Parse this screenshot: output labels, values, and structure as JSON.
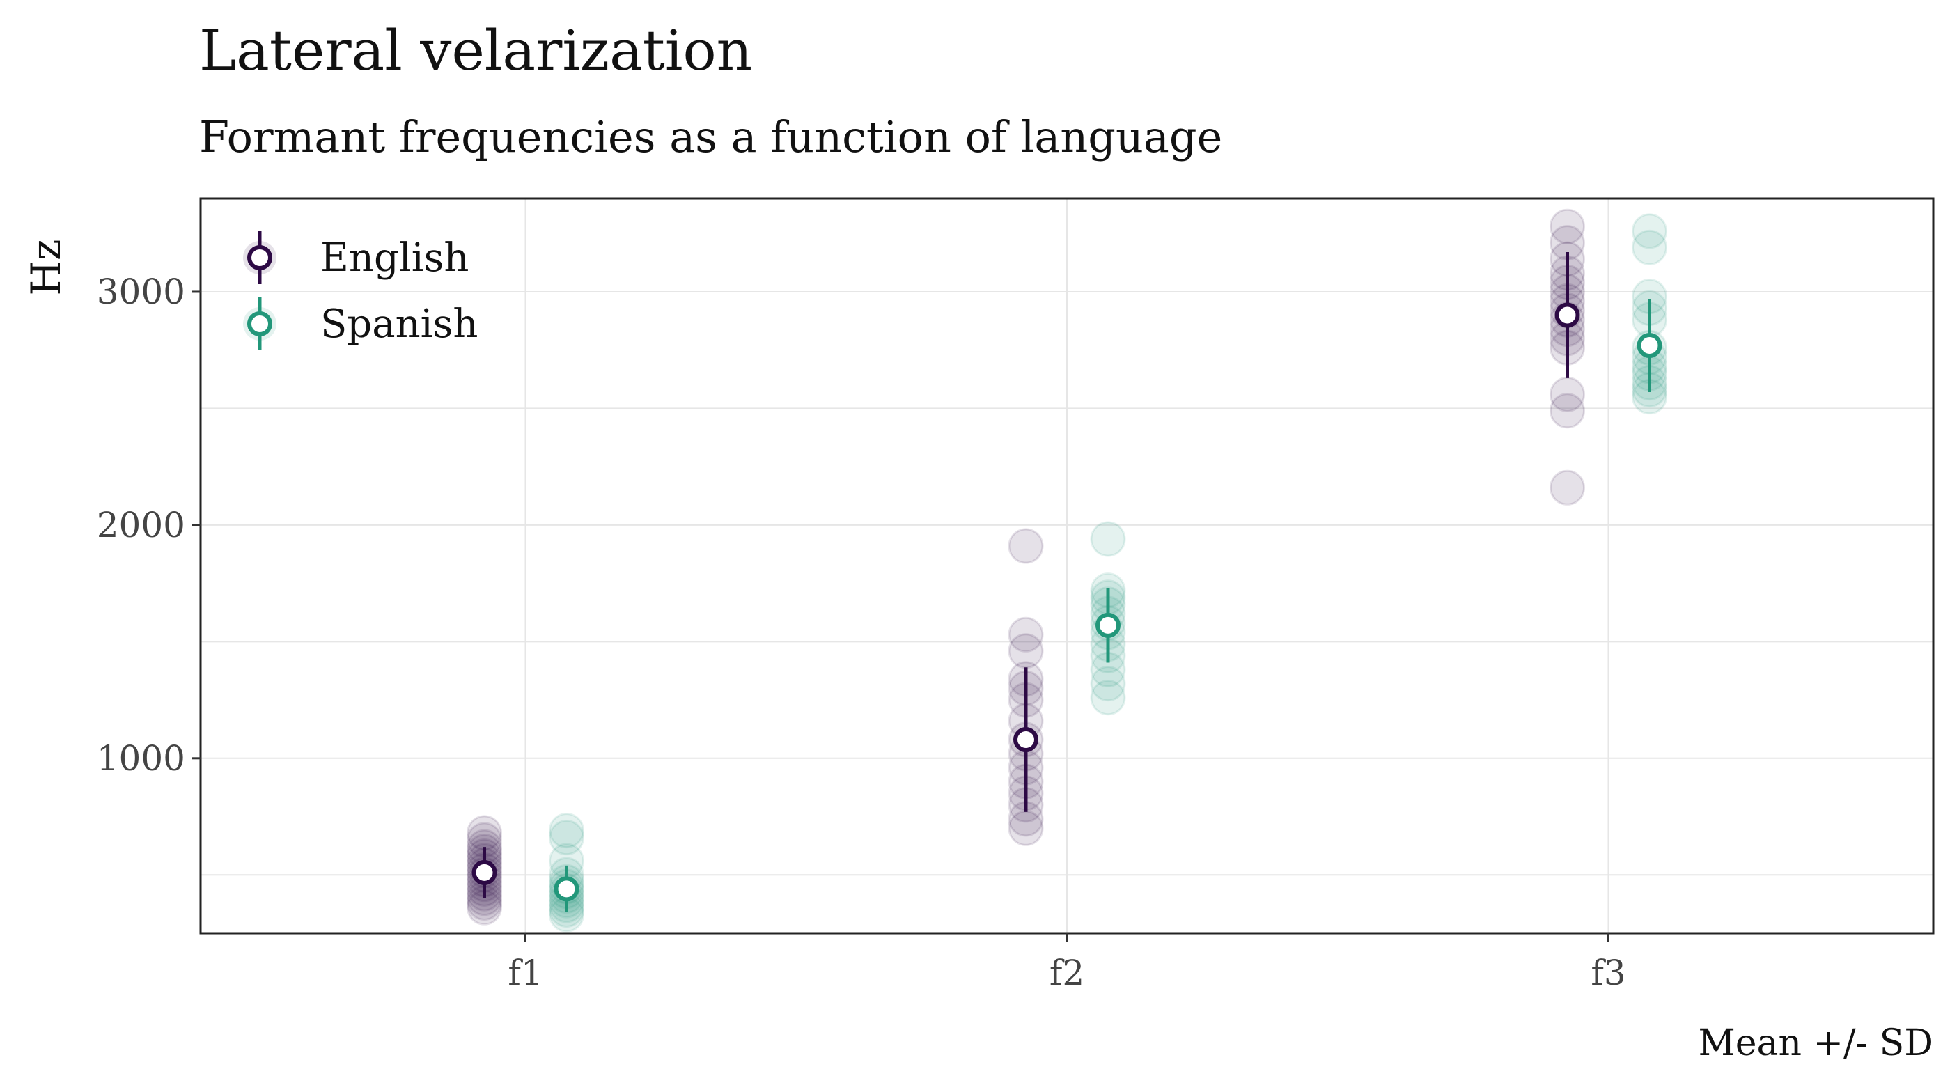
{
  "chart_data": {
    "type": "scatter",
    "title": "Lateral velarization",
    "subtitle": "Formant frequencies as a function of language",
    "ylabel": "Hz",
    "xlabel": "",
    "caption": "Mean +/- SD",
    "categories": [
      "f1",
      "f2",
      "f3"
    ],
    "y_ticks": [
      1000,
      2000,
      3000
    ],
    "ylim": [
      250,
      3400
    ],
    "grid": true,
    "legend_position": "top-left",
    "series": [
      {
        "name": "English",
        "color": "#2d0a45",
        "summary": [
          {
            "category": "f1",
            "mean": 510,
            "sd": 110
          },
          {
            "category": "f2",
            "mean": 1080,
            "sd": 310
          },
          {
            "category": "f3",
            "mean": 2900,
            "sd": 270
          }
        ],
        "points": {
          "f1": [
            680,
            650,
            620,
            600,
            580,
            560,
            540,
            520,
            500,
            480,
            460,
            440,
            420,
            400,
            380,
            360
          ],
          "f2": [
            1910,
            1530,
            1460,
            1340,
            1300,
            1250,
            1160,
            1080,
            1020,
            960,
            900,
            850,
            800,
            740,
            700
          ],
          "f3": [
            3280,
            3210,
            3140,
            3080,
            3040,
            3000,
            2960,
            2920,
            2880,
            2840,
            2800,
            2760,
            2560,
            2490,
            2160
          ]
        }
      },
      {
        "name": "Spanish",
        "color": "#22977a",
        "summary": [
          {
            "category": "f1",
            "mean": 440,
            "sd": 100
          },
          {
            "category": "f2",
            "mean": 1570,
            "sd": 160
          },
          {
            "category": "f3",
            "mean": 2770,
            "sd": 200
          }
        ],
        "points": {
          "f1": [
            690,
            660,
            560,
            500,
            470,
            450,
            430,
            410,
            390,
            370,
            350,
            330
          ],
          "f2": [
            1940,
            1720,
            1690,
            1660,
            1620,
            1580,
            1540,
            1490,
            1440,
            1380,
            1320,
            1260
          ],
          "f3": [
            3260,
            3190,
            2980,
            2930,
            2880,
            2760,
            2720,
            2680,
            2650,
            2610,
            2580,
            2550
          ]
        }
      }
    ]
  }
}
